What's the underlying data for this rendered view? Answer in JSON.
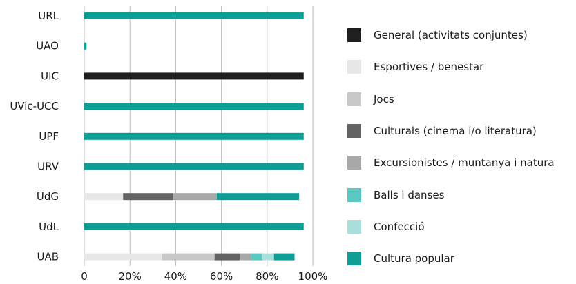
{
  "chart_data": {
    "type": "bar",
    "orientation": "horizontal",
    "stacked": true,
    "categories": [
      "URL",
      "UAO",
      "UIC",
      "UVic-UCC",
      "UPF",
      "URV",
      "UdG",
      "UdL",
      "UAB"
    ],
    "x_ticks": [
      "0",
      "20%",
      "40%",
      "60%",
      "80%",
      "100%"
    ],
    "xlim": [
      0,
      100
    ],
    "grid": "vertical",
    "legend_position": "right",
    "series": [
      {
        "name": "General (activitats conjuntes)",
        "color": "#1f1f1f",
        "values": [
          0,
          0,
          96,
          0,
          0,
          0,
          0,
          0,
          0
        ]
      },
      {
        "name": "Esportives / benestar",
        "color": "#e6e7e8",
        "values": [
          0,
          0,
          0,
          0,
          0,
          0,
          17,
          0,
          34
        ]
      },
      {
        "name": "Jocs",
        "color": "#c8c8c8",
        "values": [
          0,
          0,
          0,
          0,
          0,
          0,
          0,
          0,
          23
        ]
      },
      {
        "name": "Culturals (cinema i/o literatura)",
        "color": "#636363",
        "values": [
          0,
          0,
          0,
          0,
          0,
          0,
          22,
          0,
          11
        ]
      },
      {
        "name": "Excursionistes / muntanya i natura",
        "color": "#a8a8aa",
        "values": [
          0,
          0,
          0,
          0,
          0,
          0,
          19,
          0,
          5
        ]
      },
      {
        "name": "Balls i danses",
        "color": "#5ac7c1",
        "values": [
          0,
          0,
          0,
          0,
          0,
          0,
          0,
          0,
          5
        ]
      },
      {
        "name": "Confecció",
        "color": "#aadfdc",
        "values": [
          0,
          0,
          0,
          0,
          0,
          0,
          0,
          0,
          5
        ]
      },
      {
        "name": "Cultura popular",
        "color": "#0e9e96",
        "values": [
          96,
          1,
          0,
          96,
          96,
          96,
          36,
          96,
          9
        ]
      }
    ]
  }
}
